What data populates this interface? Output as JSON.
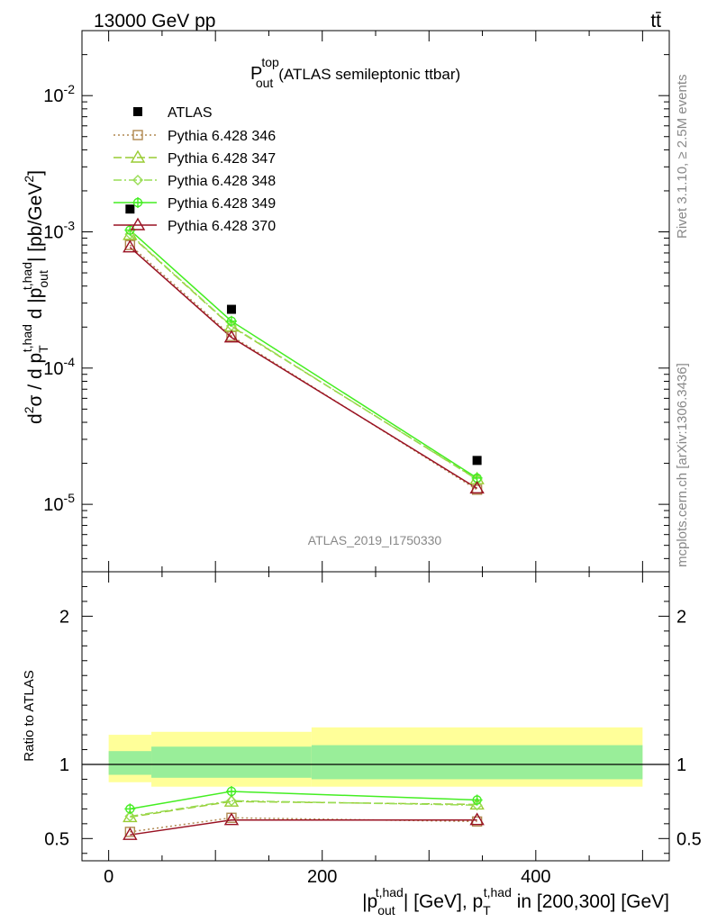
{
  "header": {
    "energy": "13000 GeV pp",
    "process": "tt̄"
  },
  "side_labels": {
    "rivet": "Rivet 3.1.10, ≥ 2.5M events",
    "mcplots": "mcplots.cern.ch [arXiv:1306.3436]"
  },
  "watermark": "ATLAS_2019_I1750330",
  "chart_data": [
    {
      "type": "line",
      "panel": "main",
      "title": "P_out^top (ATLAS semileptonic ttbar)",
      "title_main": "P",
      "title_sup": "top",
      "title_sub": "out",
      "title_rest": "(ATLAS semileptonic ttbar)",
      "ylabel": "d²σ / d p_T^{t,had} d |p_out^{t,had}| [pb/GeV²]",
      "yscale": "log",
      "ylim": [
        3.2e-06,
        0.03
      ],
      "xlim": [
        -25,
        525
      ],
      "y_ticks": [
        {
          "label": "10",
          "exp": "-5",
          "value": 1e-05
        },
        {
          "label": "10",
          "exp": "-4",
          "value": 0.0001
        },
        {
          "label": "10",
          "exp": "-3",
          "value": 0.001
        },
        {
          "label": "10",
          "exp": "-2",
          "value": 0.01
        }
      ],
      "legend_position": "top-left",
      "data": {
        "name": "ATLAS",
        "x": [
          20,
          115,
          345
        ],
        "y": [
          0.00147,
          0.00027,
          2.1e-05
        ]
      },
      "series": [
        {
          "name": "Pythia 6.428 346",
          "color": "#b08850",
          "marker": "square",
          "dash": "2,3",
          "x": [
            20,
            115,
            345
          ],
          "y": [
            0.0008,
            0.000172,
            1.28e-05
          ]
        },
        {
          "name": "Pythia 6.428 347",
          "color": "#99cc33",
          "marker": "triangle",
          "dash": "9,4",
          "x": [
            20,
            115,
            345
          ],
          "y": [
            0.00095,
            0.000202,
            1.53e-05
          ]
        },
        {
          "name": "Pythia 6.428 348",
          "color": "#99dd55",
          "marker": "diamond",
          "dash": "9,3,2,3",
          "x": [
            20,
            115,
            345
          ],
          "y": [
            0.00096,
            0.000204,
            1.52e-05
          ]
        },
        {
          "name": "Pythia 6.428 349",
          "color": "#44ee22",
          "marker": "cross",
          "dash": "",
          "x": [
            20,
            115,
            345
          ],
          "y": [
            0.00103,
            0.000221,
            1.56e-05
          ]
        },
        {
          "name": "Pythia 6.428 370",
          "color": "#991122",
          "marker": "triangle",
          "dash": "",
          "x": [
            20,
            115,
            345
          ],
          "y": [
            0.00077,
            0.000168,
            1.31e-05
          ]
        }
      ]
    },
    {
      "type": "line",
      "panel": "ratio",
      "ylabel": "Ratio to ATLAS",
      "ylim": [
        0.35,
        2.3
      ],
      "xlim": [
        -25,
        525
      ],
      "y_ticks": [
        0.5,
        1,
        2
      ],
      "x_ticks": [
        0,
        200,
        400
      ],
      "xlabel": "|p_out^{t,had}| [GeV], p_T^{t,had} in [200,300] [GeV]",
      "bands": [
        {
          "x": [
            0,
            40
          ],
          "inner": [
            0.93,
            1.09
          ],
          "outer": [
            0.88,
            1.2
          ]
        },
        {
          "x": [
            40,
            190
          ],
          "inner": [
            0.91,
            1.12
          ],
          "outer": [
            0.85,
            1.22
          ]
        },
        {
          "x": [
            190,
            500
          ],
          "inner": [
            0.9,
            1.13
          ],
          "outer": [
            0.85,
            1.25
          ]
        }
      ],
      "series": [
        {
          "name": "Pythia 6.428 346",
          "x": [
            20,
            115,
            345
          ],
          "y": [
            0.545,
            0.64,
            0.615
          ]
        },
        {
          "name": "Pythia 6.428 347",
          "x": [
            20,
            115,
            345
          ],
          "y": [
            0.645,
            0.75,
            0.73
          ]
        },
        {
          "name": "Pythia 6.428 348",
          "x": [
            20,
            115,
            345
          ],
          "y": [
            0.65,
            0.755,
            0.725
          ]
        },
        {
          "name": "Pythia 6.428 349",
          "x": [
            20,
            115,
            345
          ],
          "y": [
            0.7,
            0.818,
            0.76
          ]
        },
        {
          "name": "Pythia 6.428 370",
          "x": [
            20,
            115,
            345
          ],
          "y": [
            0.525,
            0.625,
            0.625
          ]
        }
      ]
    }
  ]
}
